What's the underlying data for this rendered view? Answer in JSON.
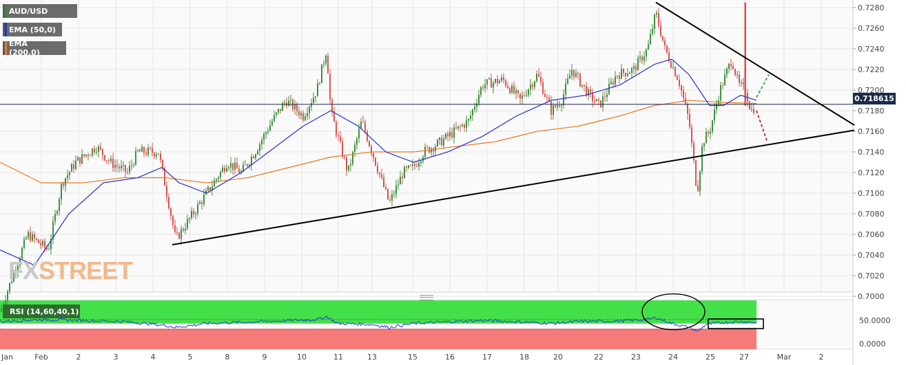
{
  "legends": {
    "pair": "AUD/USD",
    "ema50": "EMA (50,0)",
    "ema200": "EMA (200,0)",
    "rsi": "RSI (14,60,40,1)",
    "colors": {
      "pair": "#3a8a3a",
      "ema50": "#2233cc",
      "ema200": "#e87722"
    }
  },
  "current_price": "0.718615",
  "watermark": {
    "fx": "FX",
    "street": "STREET"
  },
  "colors": {
    "up": "#3d8f3d",
    "down": "#d9534f",
    "ema50": "#2233cc",
    "ema200": "#e87722",
    "rsi_line": "#1f3fd1",
    "rsi_top_zone": "#44e04a",
    "rsi_bottom_zone": "#f57b7b",
    "trend": "#000000",
    "projection_up": "#3daa3d",
    "projection_down": "#c0392b"
  },
  "chart_data": [
    {
      "type": "candlestick",
      "title": "AUD/USD",
      "x_tick_labels": [
        "Jan",
        "Feb",
        "2",
        "3",
        "4",
        "5",
        "8",
        "9",
        "10",
        "11",
        "13",
        "15",
        "16",
        "17",
        "18",
        "20",
        "22",
        "23",
        "24",
        "25",
        "27",
        "Mar",
        "2"
      ],
      "y_tick_labels": [
        "0.7280",
        "0.7260",
        "0.7240",
        "0.7220",
        "0.7200",
        "0.7180",
        "0.7160",
        "0.7140",
        "0.7120",
        "0.7100",
        "0.7080",
        "0.7060",
        "0.7040",
        "0.7020",
        "0.7000"
      ],
      "ylim": [
        0.6985,
        0.7285
      ],
      "grid": true,
      "price_profile": [
        [
          0,
          0.6985
        ],
        [
          40,
          0.706
        ],
        [
          70,
          0.7045
        ],
        [
          90,
          0.711
        ],
        [
          110,
          0.713
        ],
        [
          140,
          0.7145
        ],
        [
          160,
          0.713
        ],
        [
          185,
          0.712
        ],
        [
          200,
          0.714
        ],
        [
          230,
          0.714
        ],
        [
          245,
          0.709
        ],
        [
          255,
          0.7055
        ],
        [
          270,
          0.707
        ],
        [
          290,
          0.709
        ],
        [
          310,
          0.711
        ],
        [
          330,
          0.713
        ],
        [
          350,
          0.712
        ],
        [
          370,
          0.714
        ],
        [
          395,
          0.717
        ],
        [
          415,
          0.719
        ],
        [
          440,
          0.7175
        ],
        [
          460,
          0.72
        ],
        [
          474,
          0.724
        ],
        [
          480,
          0.718
        ],
        [
          492,
          0.715
        ],
        [
          505,
          0.712
        ],
        [
          525,
          0.717
        ],
        [
          540,
          0.714
        ],
        [
          565,
          0.709
        ],
        [
          585,
          0.712
        ],
        [
          600,
          0.7125
        ],
        [
          615,
          0.714
        ],
        [
          640,
          0.715
        ],
        [
          660,
          0.716
        ],
        [
          680,
          0.717
        ],
        [
          700,
          0.7205
        ],
        [
          730,
          0.721
        ],
        [
          755,
          0.719
        ],
        [
          780,
          0.7215
        ],
        [
          800,
          0.718
        ],
        [
          815,
          0.719
        ],
        [
          830,
          0.722
        ],
        [
          855,
          0.7195
        ],
        [
          870,
          0.7185
        ],
        [
          895,
          0.7215
        ],
        [
          920,
          0.722
        ],
        [
          940,
          0.724
        ],
        [
          952,
          0.7275
        ],
        [
          965,
          0.724
        ],
        [
          985,
          0.721
        ],
        [
          1000,
          0.717
        ],
        [
          1012,
          0.71
        ],
        [
          1020,
          0.715
        ],
        [
          1030,
          0.716
        ],
        [
          1045,
          0.72
        ],
        [
          1062,
          0.723
        ],
        [
          1072,
          0.7205
        ],
        [
          1082,
          0.72
        ],
        [
          1090,
          0.718
        ],
        [
          1098,
          0.7185
        ]
      ],
      "ema50_profile": [
        [
          0,
          0.7045
        ],
        [
          50,
          0.703
        ],
        [
          100,
          0.708
        ],
        [
          150,
          0.711
        ],
        [
          200,
          0.7115
        ],
        [
          235,
          0.7125
        ],
        [
          260,
          0.711
        ],
        [
          300,
          0.71
        ],
        [
          350,
          0.712
        ],
        [
          400,
          0.7145
        ],
        [
          440,
          0.7165
        ],
        [
          480,
          0.718
        ],
        [
          520,
          0.7165
        ],
        [
          560,
          0.714
        ],
        [
          600,
          0.713
        ],
        [
          650,
          0.714
        ],
        [
          700,
          0.7155
        ],
        [
          750,
          0.7175
        ],
        [
          800,
          0.719
        ],
        [
          850,
          0.7195
        ],
        [
          900,
          0.7205
        ],
        [
          950,
          0.7225
        ],
        [
          975,
          0.723
        ],
        [
          1000,
          0.7215
        ],
        [
          1030,
          0.7185
        ],
        [
          1050,
          0.7185
        ],
        [
          1075,
          0.7195
        ],
        [
          1098,
          0.719
        ]
      ],
      "ema200_profile": [
        [
          0,
          0.713
        ],
        [
          60,
          0.711
        ],
        [
          120,
          0.711
        ],
        [
          180,
          0.7115
        ],
        [
          240,
          0.7115
        ],
        [
          300,
          0.711
        ],
        [
          360,
          0.7115
        ],
        [
          420,
          0.7125
        ],
        [
          480,
          0.7135
        ],
        [
          540,
          0.714
        ],
        [
          600,
          0.714
        ],
        [
          660,
          0.7145
        ],
        [
          720,
          0.715
        ],
        [
          780,
          0.716
        ],
        [
          840,
          0.7165
        ],
        [
          900,
          0.7175
        ],
        [
          950,
          0.7185
        ],
        [
          1000,
          0.719
        ],
        [
          1050,
          0.7188
        ],
        [
          1098,
          0.7187
        ]
      ],
      "trendlines": [
        {
          "from": [
            250,
            0.705
          ],
          "to": [
            1240,
            0.7161
          ]
        },
        {
          "from": [
            952,
            0.7285
          ],
          "to": [
            1240,
            0.7166
          ]
        }
      ],
      "projections": [
        {
          "style": "dashed",
          "color": "green",
          "from": [
            1098,
            0.7193
          ],
          "to": [
            1116,
            0.7215
          ]
        },
        {
          "style": "dashed",
          "color": "red",
          "from": [
            1098,
            0.718
          ],
          "to": [
            1113,
            0.7151
          ]
        }
      ],
      "horizontal_level": 0.718615
    },
    {
      "type": "line",
      "title": "RSI (14,60,40,1)",
      "y_tick_labels": [
        "50.0000",
        "0.0000"
      ],
      "ylim": [
        0,
        100
      ],
      "levels": {
        "upper": 60,
        "lower": 40
      },
      "rsi_profile": [
        [
          0,
          56
        ],
        [
          60,
          60
        ],
        [
          120,
          58
        ],
        [
          180,
          56
        ],
        [
          240,
          48
        ],
        [
          255,
          44
        ],
        [
          300,
          52
        ],
        [
          360,
          55
        ],
        [
          420,
          58
        ],
        [
          460,
          60
        ],
        [
          474,
          66
        ],
        [
          490,
          52
        ],
        [
          540,
          50
        ],
        [
          565,
          44
        ],
        [
          600,
          52
        ],
        [
          660,
          56
        ],
        [
          700,
          58
        ],
        [
          760,
          55
        ],
        [
          800,
          52
        ],
        [
          840,
          56
        ],
        [
          900,
          57
        ],
        [
          940,
          60
        ],
        [
          952,
          64
        ],
        [
          975,
          52
        ],
        [
          1000,
          44
        ],
        [
          1012,
          36
        ],
        [
          1025,
          50
        ],
        [
          1050,
          54
        ],
        [
          1075,
          56
        ],
        [
          1098,
          54
        ]
      ],
      "annotations": {
        "ellipse": [
          [
            935,
            100
          ],
          [
            1020,
            40
          ]
        ],
        "rectangle": [
          [
            1028,
            75
          ],
          [
            1108,
            35
          ]
        ]
      }
    }
  ]
}
